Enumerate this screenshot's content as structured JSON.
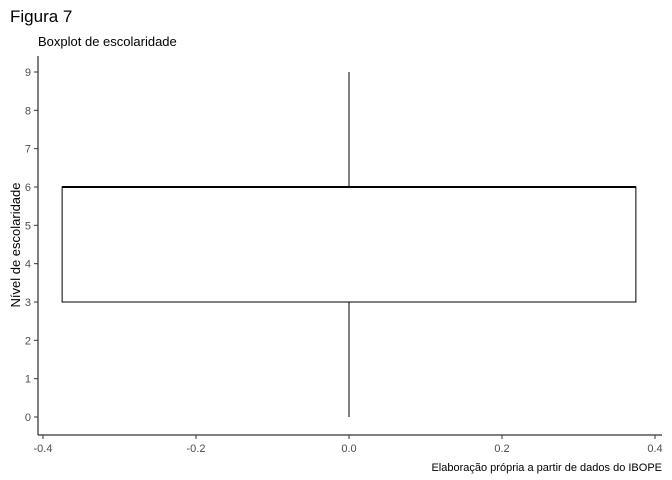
{
  "chart_data": {
    "type": "boxplot",
    "title": "Figura 7",
    "subtitle": "Boxplot de escolaridade",
    "xlabel": "",
    "ylabel": "Nível de escolaridade",
    "caption": "Elaboração própria a partir de dados do IBOPE",
    "xlim": [
      -0.4,
      0.4
    ],
    "ylim": [
      0,
      9
    ],
    "x_ticks": [
      -0.4,
      -0.2,
      0.0,
      0.2,
      0.4
    ],
    "x_tick_labels": [
      "-0.4",
      "-0.2",
      "0.0",
      "0.2",
      "0.4"
    ],
    "y_ticks": [
      0,
      1,
      2,
      3,
      4,
      5,
      6,
      7,
      8,
      9
    ],
    "y_tick_labels": [
      "0",
      "1",
      "2",
      "3",
      "4",
      "5",
      "6",
      "7",
      "8",
      "9"
    ],
    "box": {
      "x_center": 0.0,
      "x_min": -0.375,
      "x_max": 0.375,
      "min": 0,
      "q1": 3,
      "median": 6,
      "q3": 6,
      "max": 9
    },
    "grid": false
  }
}
